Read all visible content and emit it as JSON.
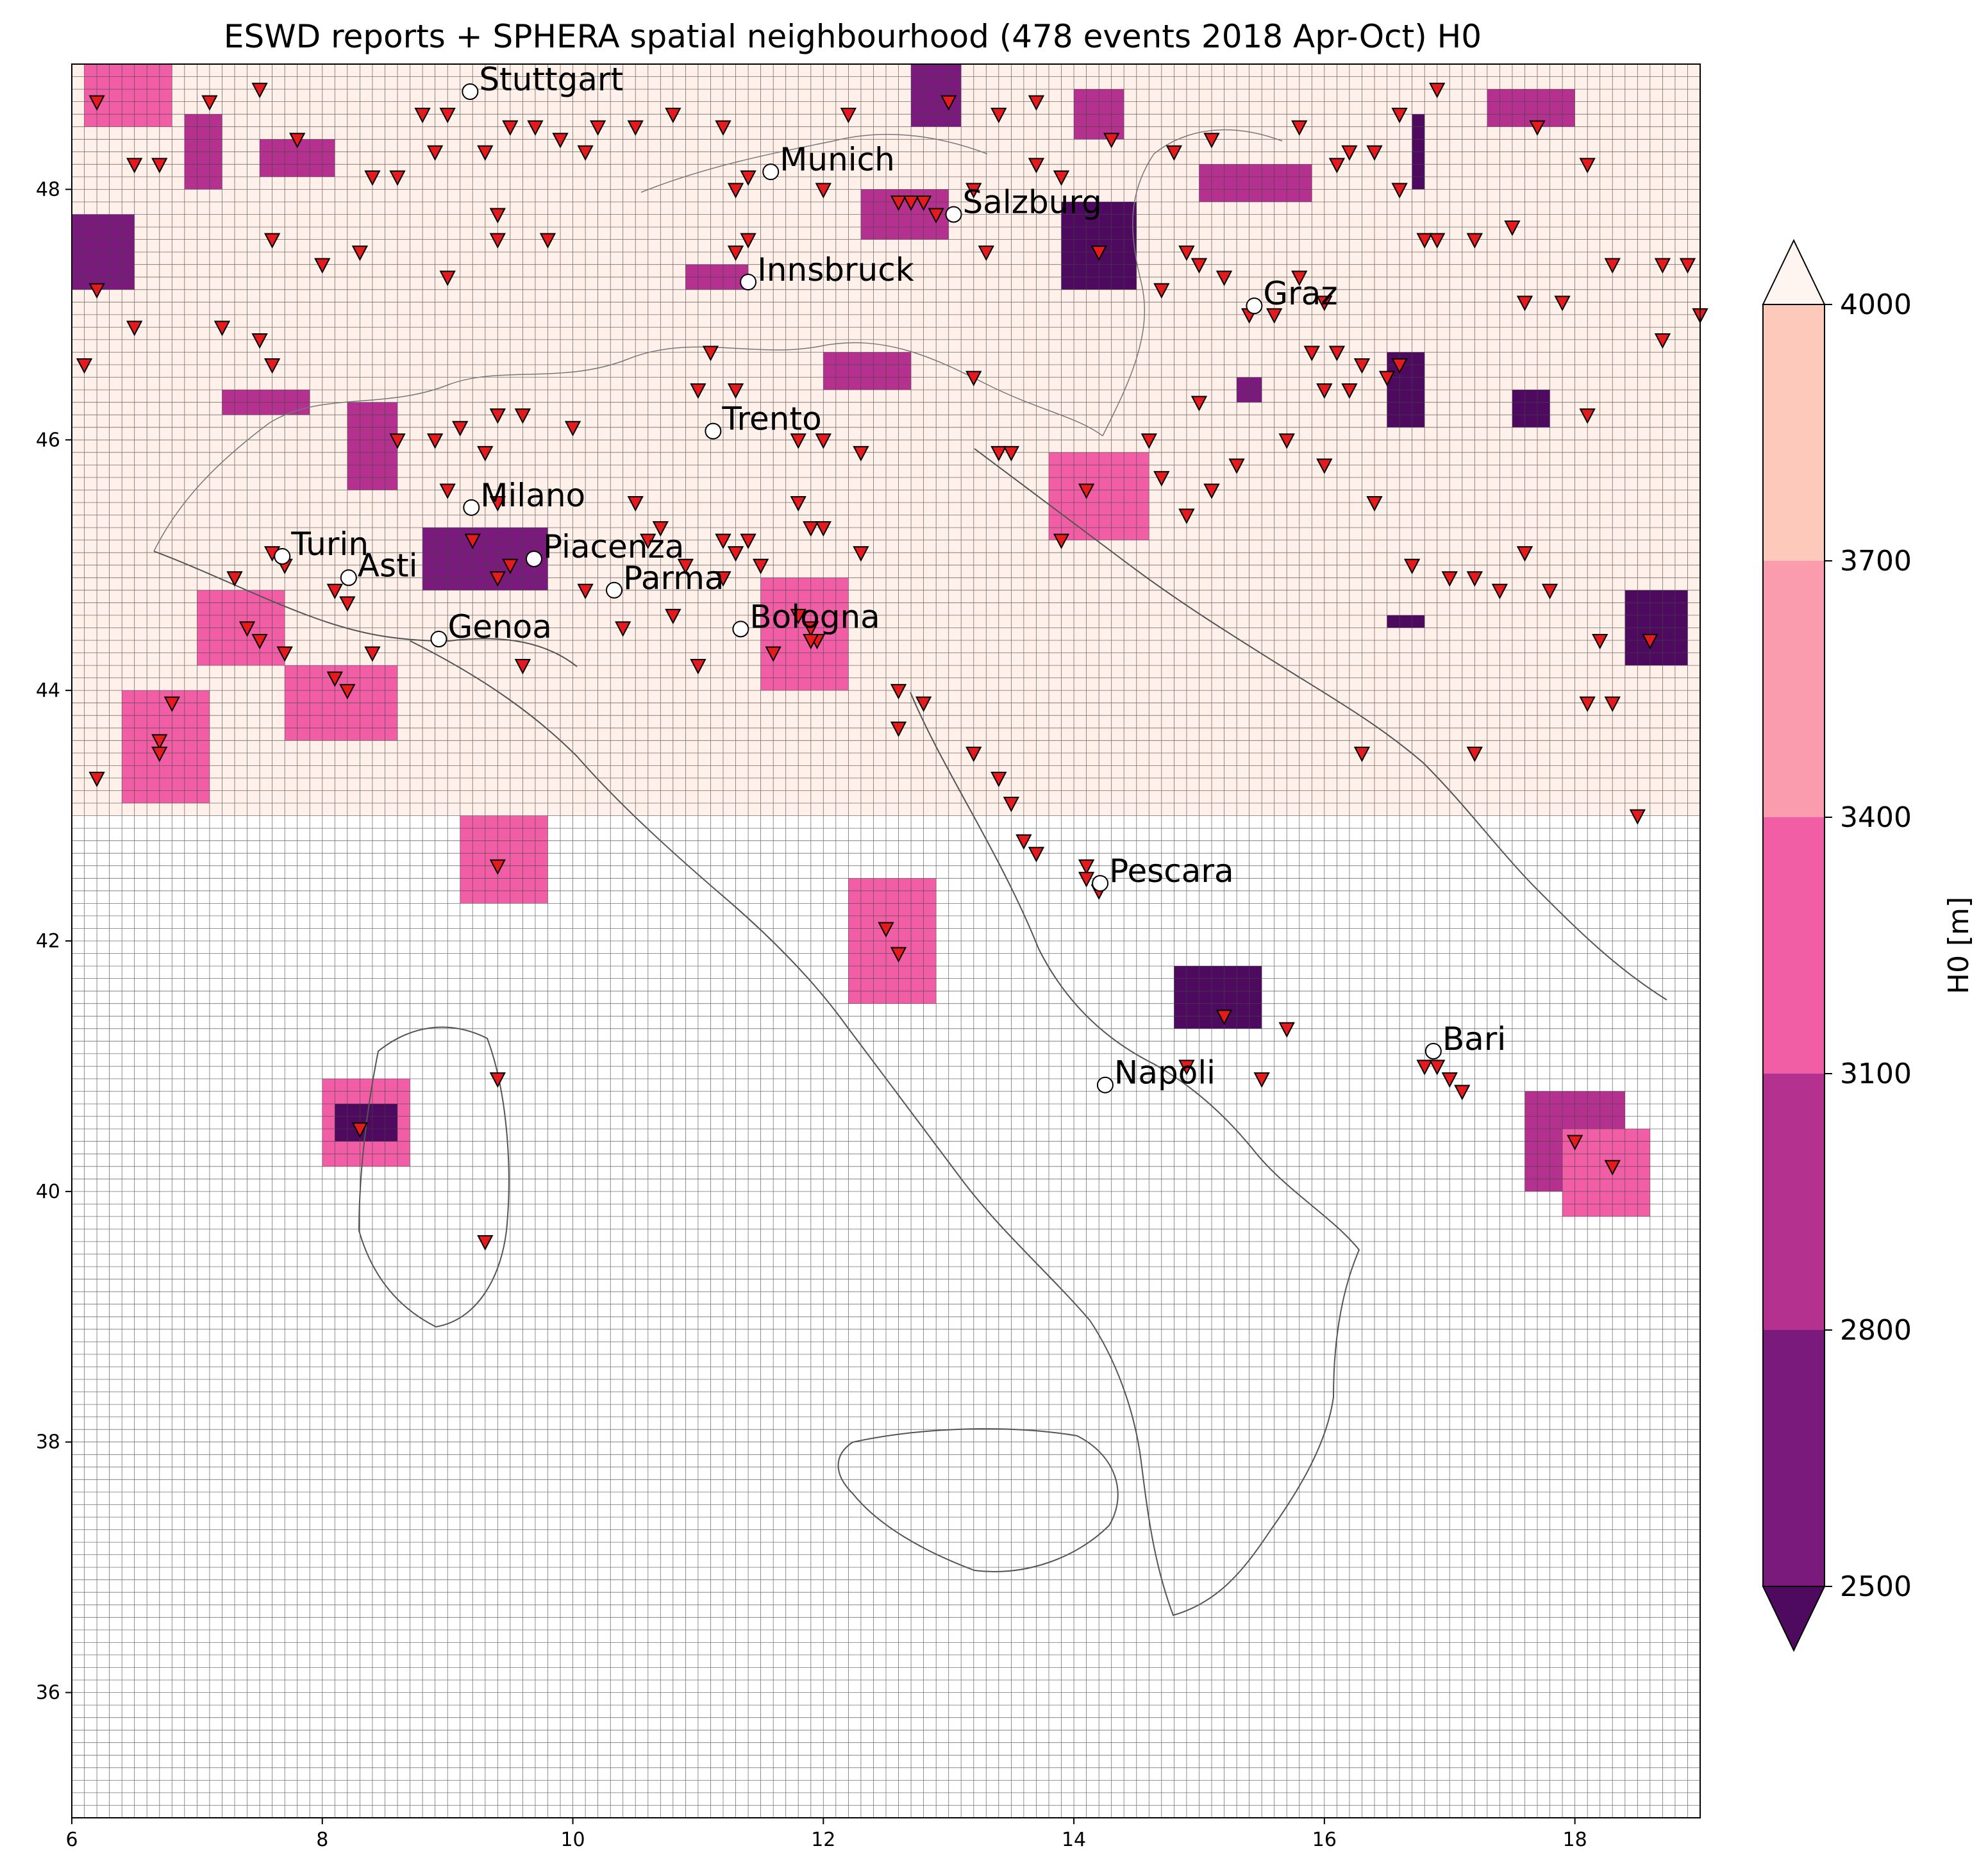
{
  "title": "ESWD reports + SPHERA spatial neighbourhood (478 events 2018 Apr-Oct) H0",
  "colorbar": {
    "label": "H0  [m]",
    "levels": [
      2500,
      2800,
      3100,
      3400,
      3700,
      4000
    ],
    "level_labels": [
      "2500",
      "2800",
      "3100",
      "3400",
      "3700",
      "4000"
    ],
    "colors": [
      "#7a1a7c",
      "#b5318f",
      "#f25ea6",
      "#fb9cae",
      "#fdc9bb"
    ],
    "under_color": "#4d0a5e",
    "over_color": "#fff5f0"
  },
  "chart_data": {
    "type": "heatmap",
    "xlim": [
      6,
      19
    ],
    "ylim": [
      35,
      49
    ],
    "x_ticks": [
      6,
      8,
      10,
      12,
      14,
      16,
      18
    ],
    "x_tick_labels": [
      "6",
      "8",
      "10",
      "12",
      "14",
      "16",
      "18"
    ],
    "y_ticks": [
      36,
      38,
      40,
      42,
      44,
      46,
      48
    ],
    "y_tick_labels": [
      "36",
      "38",
      "40",
      "42",
      "44",
      "46",
      "48"
    ],
    "grid": true,
    "cities": [
      {
        "name": "Stuttgart",
        "lon": 9.18,
        "lat": 48.78
      },
      {
        "name": "Munich",
        "lon": 11.58,
        "lat": 48.14
      },
      {
        "name": "Salzburg",
        "lon": 13.04,
        "lat": 47.8
      },
      {
        "name": "Innsbruck",
        "lon": 11.4,
        "lat": 47.26
      },
      {
        "name": "Graz",
        "lon": 15.44,
        "lat": 47.07
      },
      {
        "name": "Trento",
        "lon": 11.12,
        "lat": 46.07
      },
      {
        "name": "Milano",
        "lon": 9.19,
        "lat": 45.46
      },
      {
        "name": "Turin",
        "lon": 7.68,
        "lat": 45.07
      },
      {
        "name": "Asti",
        "lon": 8.21,
        "lat": 44.9
      },
      {
        "name": "Piacenza",
        "lon": 9.69,
        "lat": 45.05
      },
      {
        "name": "Parma",
        "lon": 10.33,
        "lat": 44.8
      },
      {
        "name": "Genoa",
        "lon": 8.93,
        "lat": 44.41
      },
      {
        "name": "Bologna",
        "lon": 11.34,
        "lat": 44.49
      },
      {
        "name": "Pescara",
        "lon": 14.21,
        "lat": 42.46
      },
      {
        "name": "Bari",
        "lon": 16.87,
        "lat": 41.12
      },
      {
        "name": "Napoli",
        "lon": 14.25,
        "lat": 40.85
      }
    ],
    "patches": [
      {
        "lon": [
          6.1,
          6.8
        ],
        "lat": [
          48.5,
          49.0
        ],
        "level": 3
      },
      {
        "lon": [
          6.0,
          6.5
        ],
        "lat": [
          47.2,
          47.8
        ],
        "level": 1
      },
      {
        "lon": [
          6.9,
          7.2
        ],
        "lat": [
          48.0,
          48.6
        ],
        "level": 2
      },
      {
        "lon": [
          7.5,
          8.1
        ],
        "lat": [
          48.1,
          48.4
        ],
        "level": 2
      },
      {
        "lon": [
          7.2,
          7.9
        ],
        "lat": [
          46.2,
          46.4
        ],
        "level": 2
      },
      {
        "lon": [
          8.2,
          8.6
        ],
        "lat": [
          45.6,
          46.3
        ],
        "level": 2
      },
      {
        "lon": [
          7.0,
          7.7
        ],
        "lat": [
          44.2,
          44.8
        ],
        "level": 3
      },
      {
        "lon": [
          7.7,
          8.6
        ],
        "lat": [
          43.6,
          44.2
        ],
        "level": 3
      },
      {
        "lon": [
          6.4,
          7.1
        ],
        "lat": [
          43.1,
          44.0
        ],
        "level": 3
      },
      {
        "lon": [
          8.8,
          9.8
        ],
        "lat": [
          44.8,
          45.3
        ],
        "level": 1
      },
      {
        "lon": [
          9.1,
          9.8
        ],
        "lat": [
          42.3,
          43.0
        ],
        "level": 3
      },
      {
        "lon": [
          8.0,
          8.7
        ],
        "lat": [
          40.2,
          40.9
        ],
        "level": 3
      },
      {
        "lon": [
          8.1,
          8.6
        ],
        "lat": [
          40.4,
          40.7
        ],
        "level": 0
      },
      {
        "lon": [
          11.5,
          12.2
        ],
        "lat": [
          44.0,
          44.9
        ],
        "level": 3
      },
      {
        "lon": [
          12.2,
          12.9
        ],
        "lat": [
          41.5,
          42.5
        ],
        "level": 3
      },
      {
        "lon": [
          12.0,
          12.7
        ],
        "lat": [
          46.4,
          46.7
        ],
        "level": 2
      },
      {
        "lon": [
          10.9,
          11.4
        ],
        "lat": [
          47.2,
          47.4
        ],
        "level": 2
      },
      {
        "lon": [
          12.3,
          13.0
        ],
        "lat": [
          47.6,
          48.0
        ],
        "level": 2
      },
      {
        "lon": [
          12.7,
          13.1
        ],
        "lat": [
          48.5,
          49.0
        ],
        "level": 1
      },
      {
        "lon": [
          14.0,
          14.4
        ],
        "lat": [
          48.4,
          48.8
        ],
        "level": 2
      },
      {
        "lon": [
          13.9,
          14.5
        ],
        "lat": [
          47.2,
          47.9
        ],
        "level": 0
      },
      {
        "lon": [
          13.8,
          14.6
        ],
        "lat": [
          45.2,
          45.9
        ],
        "level": 3
      },
      {
        "lon": [
          14.8,
          15.5
        ],
        "lat": [
          41.3,
          41.8
        ],
        "level": 0
      },
      {
        "lon": [
          15.0,
          15.9
        ],
        "lat": [
          47.9,
          48.2
        ],
        "level": 2
      },
      {
        "lon": [
          16.5,
          16.8
        ],
        "lat": [
          46.1,
          46.7
        ],
        "level": 0
      },
      {
        "lon": [
          17.5,
          17.8
        ],
        "lat": [
          46.1,
          46.4
        ],
        "level": 0
      },
      {
        "lon": [
          17.3,
          18.0
        ],
        "lat": [
          48.5,
          48.8
        ],
        "level": 2
      },
      {
        "lon": [
          16.7,
          16.8
        ],
        "lat": [
          48.0,
          48.6
        ],
        "level": 0
      },
      {
        "lon": [
          18.4,
          18.9
        ],
        "lat": [
          44.2,
          44.8
        ],
        "level": 0
      },
      {
        "lon": [
          17.6,
          18.4
        ],
        "lat": [
          40.0,
          40.8
        ],
        "level": 2
      },
      {
        "lon": [
          17.9,
          18.6
        ],
        "lat": [
          39.8,
          40.5
        ],
        "level": 3
      },
      {
        "lon": [
          16.5,
          16.8
        ],
        "lat": [
          44.5,
          44.6
        ],
        "level": 0
      },
      {
        "lon": [
          15.3,
          15.5
        ],
        "lat": [
          46.3,
          46.5
        ],
        "level": 1
      }
    ],
    "events": [
      [
        6.2,
        48.7
      ],
      [
        6.5,
        48.2
      ],
      [
        6.7,
        48.2
      ],
      [
        7.1,
        48.7
      ],
      [
        7.5,
        48.8
      ],
      [
        7.8,
        48.4
      ],
      [
        8.4,
        48.1
      ],
      [
        8.6,
        48.1
      ],
      [
        8.8,
        48.6
      ],
      [
        8.9,
        48.3
      ],
      [
        9.0,
        48.6
      ],
      [
        9.3,
        48.3
      ],
      [
        9.5,
        48.5
      ],
      [
        9.7,
        48.5
      ],
      [
        9.9,
        48.4
      ],
      [
        10.1,
        48.3
      ],
      [
        10.2,
        48.5
      ],
      [
        10.5,
        48.5
      ],
      [
        10.8,
        48.6
      ],
      [
        11.2,
        48.5
      ],
      [
        9.0,
        47.3
      ],
      [
        9.4,
        47.8
      ],
      [
        9.4,
        47.6
      ],
      [
        9.8,
        47.6
      ],
      [
        8.0,
        47.4
      ],
      [
        8.3,
        47.5
      ],
      [
        7.6,
        47.6
      ],
      [
        6.2,
        47.2
      ],
      [
        6.5,
        46.9
      ],
      [
        7.2,
        46.9
      ],
      [
        7.5,
        46.8
      ],
      [
        7.6,
        46.6
      ],
      [
        6.1,
        46.6
      ],
      [
        7.6,
        45.1
      ],
      [
        7.7,
        45.0
      ],
      [
        7.3,
        44.9
      ],
      [
        7.4,
        44.5
      ],
      [
        7.5,
        44.4
      ],
      [
        7.7,
        44.3
      ],
      [
        8.1,
        44.8
      ],
      [
        8.2,
        44.7
      ],
      [
        8.1,
        44.1
      ],
      [
        8.2,
        44.0
      ],
      [
        8.4,
        44.3
      ],
      [
        6.7,
        43.6
      ],
      [
        6.8,
        43.9
      ],
      [
        6.2,
        43.3
      ],
      [
        6.7,
        43.5
      ],
      [
        8.6,
        46.0
      ],
      [
        8.9,
        46.0
      ],
      [
        9.1,
        46.1
      ],
      [
        9.3,
        45.9
      ],
      [
        9.4,
        46.2
      ],
      [
        9.6,
        46.2
      ],
      [
        10.0,
        46.1
      ],
      [
        9.0,
        45.6
      ],
      [
        9.4,
        45.5
      ],
      [
        9.5,
        45.0
      ],
      [
        9.4,
        44.9
      ],
      [
        9.6,
        44.2
      ],
      [
        10.1,
        44.8
      ],
      [
        10.4,
        44.5
      ],
      [
        10.5,
        45.5
      ],
      [
        10.6,
        45.2
      ],
      [
        10.8,
        44.6
      ],
      [
        10.9,
        45.0
      ],
      [
        11.0,
        44.2
      ],
      [
        11.2,
        44.9
      ],
      [
        11.3,
        45.1
      ],
      [
        11.4,
        45.2
      ],
      [
        11.5,
        45.0
      ],
      [
        11.8,
        45.5
      ],
      [
        11.9,
        45.3
      ],
      [
        12.0,
        45.3
      ],
      [
        12.3,
        45.1
      ],
      [
        11.9,
        44.5
      ],
      [
        11.95,
        44.4
      ],
      [
        11.8,
        46.0
      ],
      [
        12.0,
        46.0
      ],
      [
        12.3,
        45.9
      ],
      [
        11.0,
        46.4
      ],
      [
        11.1,
        46.7
      ],
      [
        11.3,
        46.4
      ],
      [
        11.3,
        47.5
      ],
      [
        11.4,
        47.6
      ],
      [
        11.3,
        48.0
      ],
      [
        11.4,
        48.1
      ],
      [
        12.0,
        48.0
      ],
      [
        12.6,
        47.9
      ],
      [
        12.8,
        47.9
      ],
      [
        13.0,
        48.7
      ],
      [
        13.4,
        48.6
      ],
      [
        13.7,
        48.7
      ],
      [
        13.7,
        48.2
      ],
      [
        13.9,
        48.1
      ],
      [
        14.3,
        48.4
      ],
      [
        14.8,
        48.3
      ],
      [
        15.1,
        48.4
      ],
      [
        14.2,
        47.5
      ],
      [
        13.3,
        47.5
      ],
      [
        14.7,
        47.2
      ],
      [
        14.9,
        47.5
      ],
      [
        15.0,
        47.4
      ],
      [
        15.2,
        47.3
      ],
      [
        15.4,
        47.0
      ],
      [
        15.6,
        47.0
      ],
      [
        15.8,
        47.3
      ],
      [
        16.0,
        47.1
      ],
      [
        16.1,
        46.7
      ],
      [
        16.3,
        46.6
      ],
      [
        16.5,
        46.5
      ],
      [
        16.6,
        46.6
      ],
      [
        15.9,
        46.7
      ],
      [
        16.0,
        46.4
      ],
      [
        16.2,
        46.4
      ],
      [
        15.7,
        46.0
      ],
      [
        15.3,
        45.8
      ],
      [
        15.1,
        45.6
      ],
      [
        14.9,
        45.4
      ],
      [
        14.7,
        45.7
      ],
      [
        14.1,
        45.6
      ],
      [
        13.9,
        45.2
      ],
      [
        13.4,
        45.9
      ],
      [
        13.5,
        45.9
      ],
      [
        13.2,
        46.5
      ],
      [
        14.6,
        46.0
      ],
      [
        15.0,
        46.3
      ],
      [
        16.0,
        45.8
      ],
      [
        16.4,
        45.5
      ],
      [
        16.7,
        45.0
      ],
      [
        17.0,
        44.9
      ],
      [
        17.2,
        44.9
      ],
      [
        17.4,
        44.8
      ],
      [
        17.6,
        45.1
      ],
      [
        17.8,
        44.8
      ],
      [
        18.2,
        44.4
      ],
      [
        18.3,
        43.9
      ],
      [
        18.6,
        44.4
      ],
      [
        18.1,
        43.9
      ],
      [
        18.5,
        43.0
      ],
      [
        17.2,
        43.5
      ],
      [
        16.3,
        43.5
      ],
      [
        16.1,
        48.2
      ],
      [
        16.2,
        48.3
      ],
      [
        16.4,
        48.3
      ],
      [
        16.6,
        48.0
      ],
      [
        16.8,
        47.6
      ],
      [
        16.9,
        47.6
      ],
      [
        17.2,
        47.6
      ],
      [
        17.5,
        47.7
      ],
      [
        17.6,
        47.1
      ],
      [
        17.9,
        47.1
      ],
      [
        18.1,
        46.2
      ],
      [
        18.3,
        47.4
      ],
      [
        18.7,
        47.4
      ],
      [
        18.9,
        47.4
      ],
      [
        19.0,
        47.0
      ],
      [
        18.7,
        46.8
      ],
      [
        16.9,
        48.8
      ],
      [
        16.6,
        48.6
      ],
      [
        17.7,
        48.5
      ],
      [
        18.1,
        48.2
      ],
      [
        15.8,
        48.5
      ],
      [
        12.2,
        48.6
      ],
      [
        12.6,
        43.7
      ],
      [
        12.6,
        44.0
      ],
      [
        12.8,
        43.9
      ],
      [
        13.2,
        43.5
      ],
      [
        13.4,
        43.3
      ],
      [
        13.5,
        43.1
      ],
      [
        13.6,
        42.8
      ],
      [
        13.7,
        42.7
      ],
      [
        14.1,
        42.6
      ],
      [
        14.1,
        42.5
      ],
      [
        14.2,
        42.4
      ],
      [
        14.9,
        41.0
      ],
      [
        15.2,
        41.4
      ],
      [
        15.7,
        41.3
      ],
      [
        15.5,
        40.9
      ],
      [
        12.5,
        42.1
      ],
      [
        12.6,
        41.9
      ],
      [
        9.4,
        40.9
      ],
      [
        9.3,
        39.6
      ],
      [
        8.3,
        40.5
      ],
      [
        9.4,
        42.6
      ],
      [
        16.8,
        41.0
      ],
      [
        16.9,
        41.0
      ],
      [
        17.0,
        40.9
      ],
      [
        17.1,
        40.8
      ],
      [
        18.0,
        40.4
      ],
      [
        18.3,
        40.2
      ],
      [
        9.2,
        45.2
      ],
      [
        10.7,
        45.3
      ],
      [
        11.2,
        45.2
      ],
      [
        11.9,
        44.4
      ],
      [
        11.8,
        44.6
      ],
      [
        11.6,
        44.3
      ],
      [
        12.9,
        47.8
      ],
      [
        12.7,
        47.9
      ],
      [
        13.2,
        48.0
      ]
    ]
  }
}
